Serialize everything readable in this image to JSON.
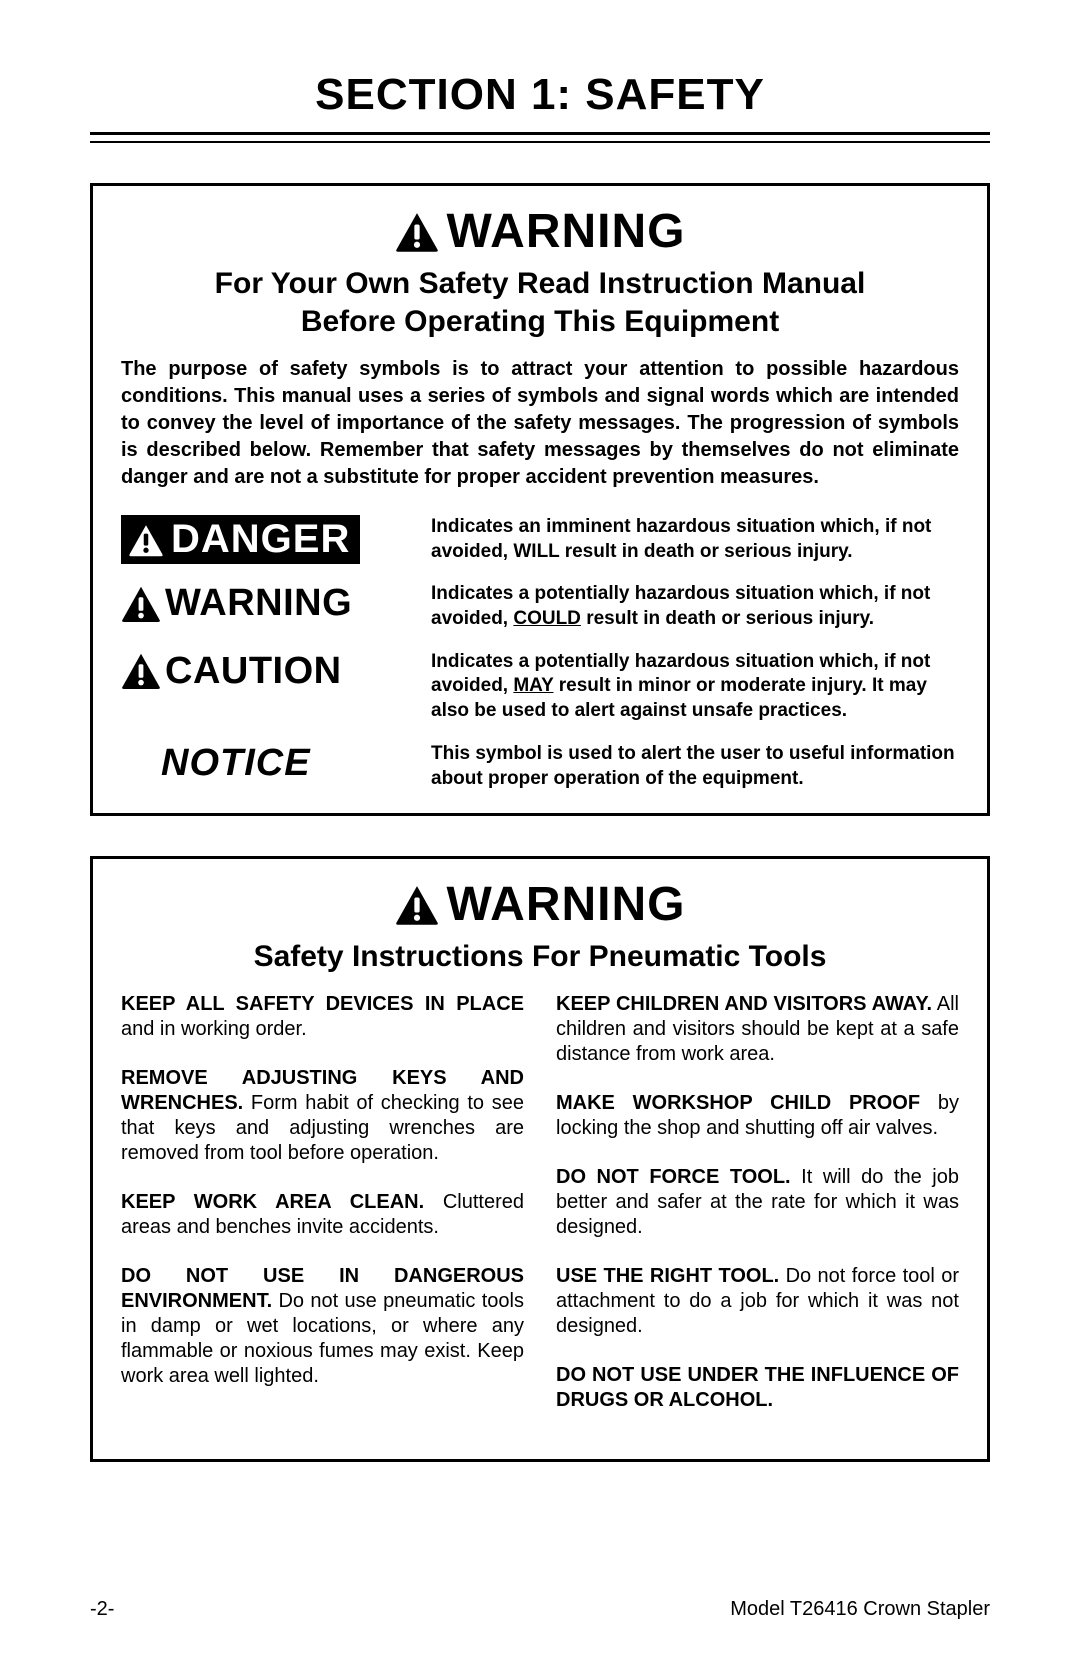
{
  "section_title": "SECTION 1: SAFETY",
  "box1": {
    "header_label": "WARNING",
    "subhead_line1": "For Your Own Safety Read Instruction Manual",
    "subhead_line2": "Before Operating This Equipment",
    "intro": "The purpose of safety symbols is to attract your attention to possible hazardous conditions. This manual uses a series of symbols and signal words which are intended to convey the level of importance of the safety messages. The progression of symbols is described below. Remember that safety messages by themselves do not eliminate danger and are not a substitute for proper accident prevention measures.",
    "definitions": {
      "danger": {
        "label": "DANGER",
        "text_before": "Indicates an imminent hazardous situation which, if not avoided, WILL result in death or serious injury."
      },
      "warning": {
        "label": "WARNING",
        "text_a": "Indicates a potentially hazardous situation which, if not avoided, ",
        "text_u": "COULD",
        "text_b": " result in death or serious injury."
      },
      "caution": {
        "label": "CAUTION",
        "text_a": "Indicates a potentially hazardous situation which, if not avoided, ",
        "text_u": "MAY",
        "text_b": " result in minor or moderate injury. It may also be used to alert against unsafe practices."
      },
      "notice": {
        "label": "NOTICE",
        "text": "This symbol is used to alert the user to useful information about proper operation of the equipment."
      }
    }
  },
  "box2": {
    "header_label": "WARNING",
    "subhead": "Safety Instructions For Pneumatic Tools",
    "left": [
      {
        "b": "KEEP ALL SAFETY DEVICES IN PLACE",
        "r": " and in working order."
      },
      {
        "b": "REMOVE ADJUSTING KEYS AND WRENCHES.",
        "r": " Form habit of checking to see that keys and adjusting wrenches are removed from tool before operation."
      },
      {
        "b": "KEEP WORK AREA CLEAN.",
        "r": " Cluttered areas and benches invite accidents."
      },
      {
        "b": "DO NOT USE IN DANGEROUS ENVIRONMENT.",
        "r": " Do not use pneumatic tools in damp or wet locations, or where any flammable or noxious fumes may exist. Keep work area well lighted."
      }
    ],
    "right": [
      {
        "b": "KEEP CHILDREN AND VISITORS AWAY.",
        "r": " All children and visitors should be kept at a safe distance from work area."
      },
      {
        "b": "MAKE WORKSHOP CHILD PROOF",
        "r": " by locking the shop and shutting off air valves."
      },
      {
        "b": "DO NOT FORCE TOOL.",
        "r": " It will do the job better and safer at the rate for which it was designed."
      },
      {
        "b": "USE THE RIGHT TOOL.",
        "r": " Do not force tool or attachment to do a job for which it was not designed."
      },
      {
        "b": "DO NOT USE UNDER THE INFLUENCE OF DRUGS OR ALCOHOL.",
        "r": ""
      }
    ]
  },
  "footer": {
    "page": "-2-",
    "model": "Model T26416 Crown Stapler"
  }
}
